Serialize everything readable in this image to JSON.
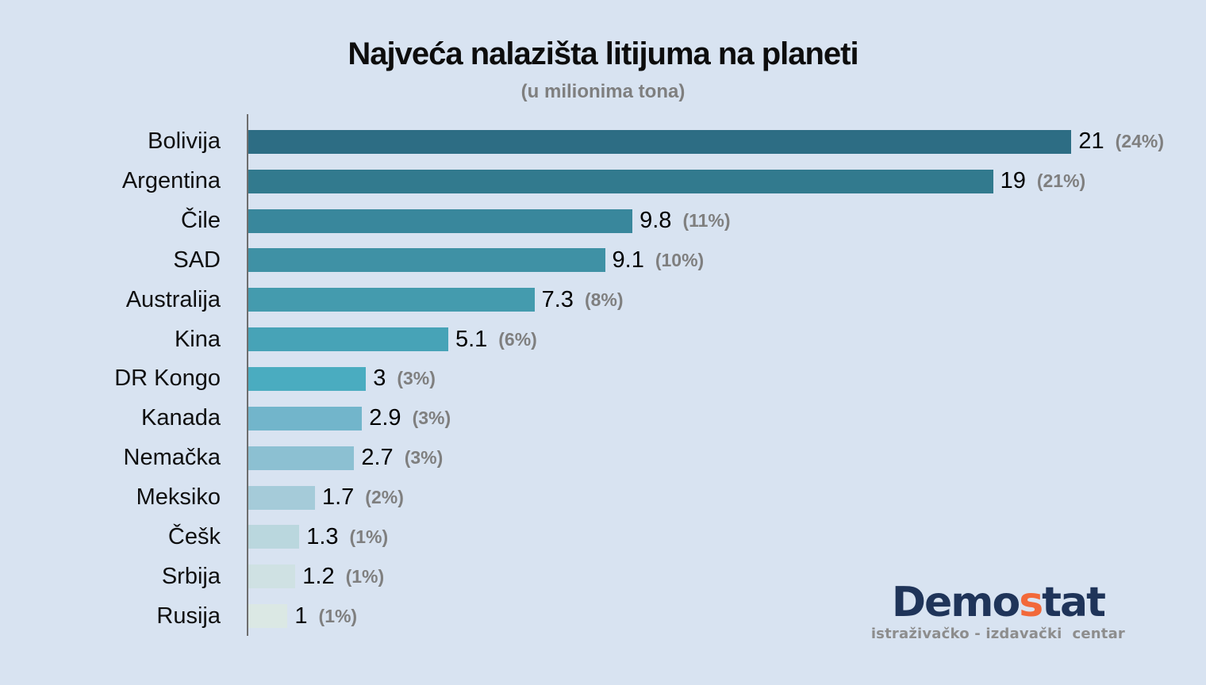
{
  "title": "Najveća nalazišta litijuma na planeti",
  "subtitle": "(u milionima tona)",
  "chart_data": {
    "type": "bar",
    "orientation": "horizontal",
    "title": "Najveća nalazišta litijuma na planeti",
    "subtitle": "(u milionima tona)",
    "unit_note": "u milionima tona",
    "xlim": [
      0,
      21
    ],
    "grid": false,
    "legend": false,
    "categories": [
      "Bolivija",
      "Argentina",
      "Čile",
      "SAD",
      "Australija",
      "Kina",
      "DR Kongo",
      "Kanada",
      "Nemačka",
      "Meksiko",
      "Češk",
      "Srbija",
      "Rusija"
    ],
    "values": [
      21,
      19,
      9.8,
      9.1,
      7.3,
      5.1,
      3,
      2.9,
      2.7,
      1.7,
      1.3,
      1.2,
      1
    ],
    "value_labels": [
      "21",
      "19",
      "9.8",
      "9.1",
      "7.3",
      "5.1",
      "3",
      "2.9",
      "2.7",
      "1.7",
      "1.3",
      "1.2",
      "1"
    ],
    "percent_labels": [
      "(24%)",
      "(21%)",
      "(11%)",
      "(10%)",
      "(8%)",
      "(6%)",
      "(3%)",
      "(3%)",
      "(3%)",
      "(2%)",
      "(1%)",
      "(1%)",
      "(1%)"
    ],
    "bar_colors": [
      "#2d6d84",
      "#327a8e",
      "#39879c",
      "#3f91a5",
      "#449bae",
      "#47a3b7",
      "#4aacc0",
      "#72b5cb",
      "#8cc0d2",
      "#a5cbd9",
      "#bad7de",
      "#cfe1e3",
      "#dbe8e4"
    ]
  },
  "colors": {
    "background": "#d8e3f1",
    "axis": "#6e6e6e",
    "title_text": "#0d0d0d",
    "subtitle_text": "#7f7f7f",
    "value_text": "#000000",
    "percent_text": "#7f7f7f"
  },
  "logo": {
    "part1": "Demo",
    "accent": "s",
    "part2": "tat",
    "tagline": "istraživačko - izdavački  centar",
    "navy": "#1f3459",
    "orange": "#f2693a",
    "tagline_color": "#8d8d8d"
  }
}
